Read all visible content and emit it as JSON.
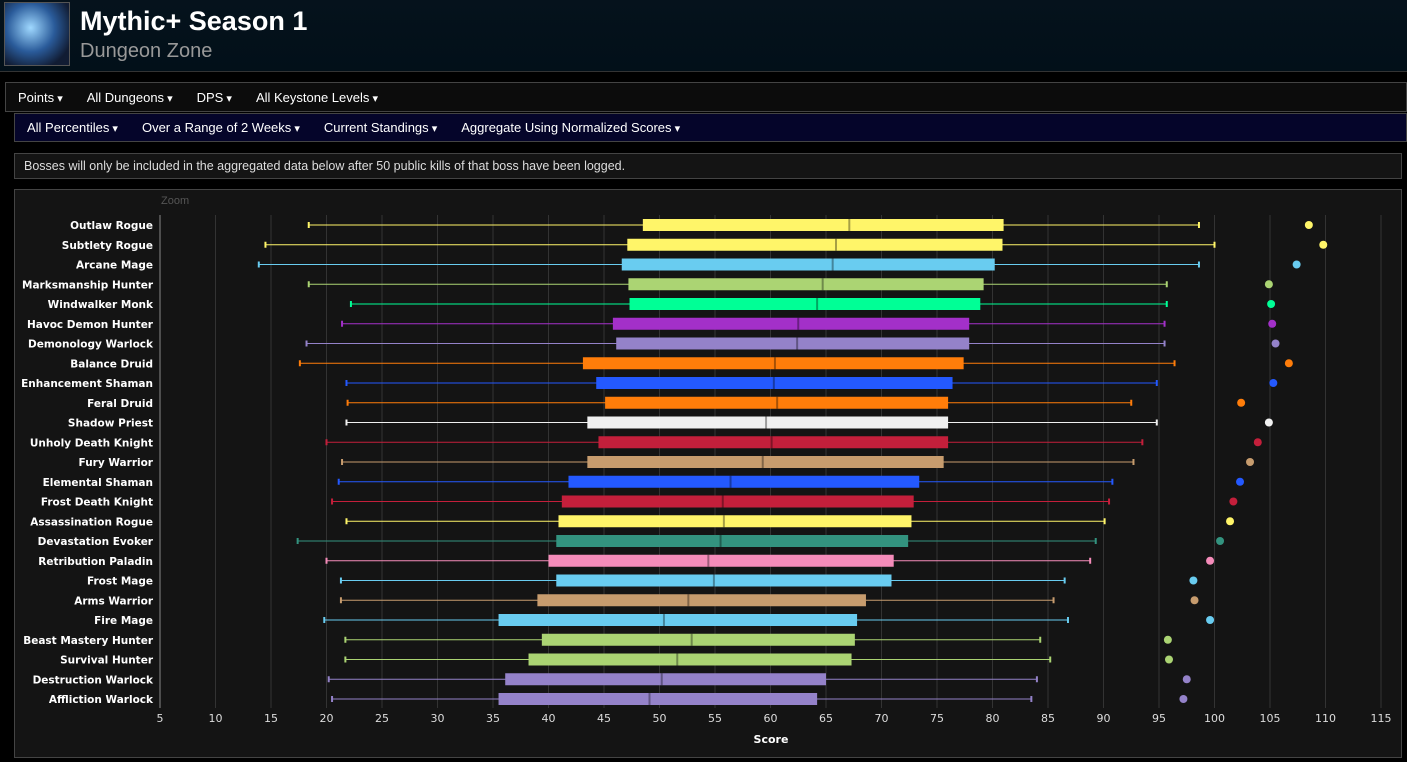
{
  "header": {
    "title": "Mythic+ Season 1",
    "subtitle": "Dungeon Zone",
    "icon": "zone-icon"
  },
  "toolbar1": [
    "Points",
    "All Dungeons",
    "DPS",
    "All Keystone Levels"
  ],
  "toolbar2": [
    "All Percentiles",
    "Over a Range of 2 Weeks",
    "Current Standings",
    "Aggregate Using Normalized Scores"
  ],
  "notice": "Bosses will only be included in the aggregated data below after 50 public kills of that boss have been logged.",
  "zoom_label": "Zoom",
  "chart_data": {
    "type": "boxplot",
    "orientation": "horizontal",
    "xlabel": "Score",
    "xlim": [
      5,
      115
    ],
    "xticks": [
      5,
      10,
      15,
      20,
      25,
      30,
      35,
      40,
      45,
      50,
      55,
      60,
      65,
      70,
      75,
      80,
      85,
      90,
      95,
      100,
      105,
      110,
      115
    ],
    "grid": true,
    "series": [
      {
        "name": "Outlaw Rogue",
        "color": "#fff569",
        "min": 18.4,
        "q1": 48.5,
        "median": 67.1,
        "q3": 81.0,
        "max": 98.6,
        "outlier": 108.5
      },
      {
        "name": "Subtlety Rogue",
        "color": "#fff569",
        "min": 14.5,
        "q1": 47.1,
        "median": 65.9,
        "q3": 80.9,
        "max": 100.0,
        "outlier": 109.8
      },
      {
        "name": "Arcane Mage",
        "color": "#69ccf0",
        "min": 13.9,
        "q1": 46.6,
        "median": 65.6,
        "q3": 80.2,
        "max": 98.6,
        "outlier": 107.4
      },
      {
        "name": "Marksmanship Hunter",
        "color": "#abd473",
        "min": 18.4,
        "q1": 47.2,
        "median": 64.7,
        "q3": 79.2,
        "max": 95.7,
        "outlier": 104.9
      },
      {
        "name": "Windwalker Monk",
        "color": "#00ff96",
        "min": 22.2,
        "q1": 47.3,
        "median": 64.2,
        "q3": 78.9,
        "max": 95.7,
        "outlier": 105.1
      },
      {
        "name": "Havoc Demon Hunter",
        "color": "#a330c9",
        "min": 21.4,
        "q1": 45.8,
        "median": 62.5,
        "q3": 77.9,
        "max": 95.5,
        "outlier": 105.2
      },
      {
        "name": "Demonology Warlock",
        "color": "#9482c9",
        "min": 18.2,
        "q1": 46.1,
        "median": 62.4,
        "q3": 77.9,
        "max": 95.5,
        "outlier": 105.5
      },
      {
        "name": "Balance Druid",
        "color": "#ff7d0a",
        "min": 17.6,
        "q1": 43.1,
        "median": 60.4,
        "q3": 77.4,
        "max": 96.4,
        "outlier": 106.7
      },
      {
        "name": "Enhancement Shaman",
        "color": "#2459ff",
        "min": 21.8,
        "q1": 44.3,
        "median": 60.3,
        "q3": 76.4,
        "max": 94.8,
        "outlier": 105.3
      },
      {
        "name": "Feral Druid",
        "color": "#ff7d0a",
        "min": 21.9,
        "q1": 45.1,
        "median": 60.6,
        "q3": 76.0,
        "max": 92.5,
        "outlier": 102.4
      },
      {
        "name": "Shadow Priest",
        "color": "#f0f0f0",
        "min": 21.8,
        "q1": 43.5,
        "median": 59.6,
        "q3": 76.0,
        "max": 94.8,
        "outlier": 104.9
      },
      {
        "name": "Unholy Death Knight",
        "color": "#c41f3b",
        "min": 20.0,
        "q1": 44.5,
        "median": 60.1,
        "q3": 76.0,
        "max": 93.5,
        "outlier": 103.9
      },
      {
        "name": "Fury Warrior",
        "color": "#c79c6e",
        "min": 21.4,
        "q1": 43.5,
        "median": 59.3,
        "q3": 75.6,
        "max": 92.7,
        "outlier": 103.2
      },
      {
        "name": "Elemental Shaman",
        "color": "#2459ff",
        "min": 21.1,
        "q1": 41.8,
        "median": 56.4,
        "q3": 73.4,
        "max": 90.8,
        "outlier": 102.3
      },
      {
        "name": "Frost Death Knight",
        "color": "#c41f3b",
        "min": 20.5,
        "q1": 41.2,
        "median": 55.7,
        "q3": 72.9,
        "max": 90.5,
        "outlier": 101.7
      },
      {
        "name": "Assassination Rogue",
        "color": "#fff569",
        "min": 21.8,
        "q1": 40.9,
        "median": 55.8,
        "q3": 72.7,
        "max": 90.1,
        "outlier": 101.4
      },
      {
        "name": "Devastation Evoker",
        "color": "#33937f",
        "min": 17.4,
        "q1": 40.7,
        "median": 55.5,
        "q3": 72.4,
        "max": 89.3,
        "outlier": 100.5
      },
      {
        "name": "Retribution Paladin",
        "color": "#f58cba",
        "min": 20.0,
        "q1": 40.0,
        "median": 54.4,
        "q3": 71.1,
        "max": 88.8,
        "outlier": 99.6
      },
      {
        "name": "Frost Mage",
        "color": "#69ccf0",
        "min": 21.3,
        "q1": 40.7,
        "median": 54.9,
        "q3": 70.9,
        "max": 86.5,
        "outlier": 98.1
      },
      {
        "name": "Arms Warrior",
        "color": "#c79c6e",
        "min": 21.3,
        "q1": 39.0,
        "median": 52.6,
        "q3": 68.6,
        "max": 85.5,
        "outlier": 98.2
      },
      {
        "name": "Fire Mage",
        "color": "#69ccf0",
        "min": 19.8,
        "q1": 35.5,
        "median": 50.4,
        "q3": 67.8,
        "max": 86.8,
        "outlier": 99.6
      },
      {
        "name": "Beast Mastery Hunter",
        "color": "#abd473",
        "min": 21.7,
        "q1": 39.4,
        "median": 52.9,
        "q3": 67.6,
        "max": 84.3,
        "outlier": 95.8
      },
      {
        "name": "Survival Hunter",
        "color": "#abd473",
        "min": 21.7,
        "q1": 38.2,
        "median": 51.6,
        "q3": 67.3,
        "max": 85.2,
        "outlier": 95.9
      },
      {
        "name": "Destruction Warlock",
        "color": "#9482c9",
        "min": 20.2,
        "q1": 36.1,
        "median": 50.2,
        "q3": 65.0,
        "max": 84.0,
        "outlier": 97.5
      },
      {
        "name": "Affliction Warlock",
        "color": "#9482c9",
        "min": 20.5,
        "q1": 35.5,
        "median": 49.1,
        "q3": 64.2,
        "max": 83.5,
        "outlier": 97.2
      }
    ]
  }
}
